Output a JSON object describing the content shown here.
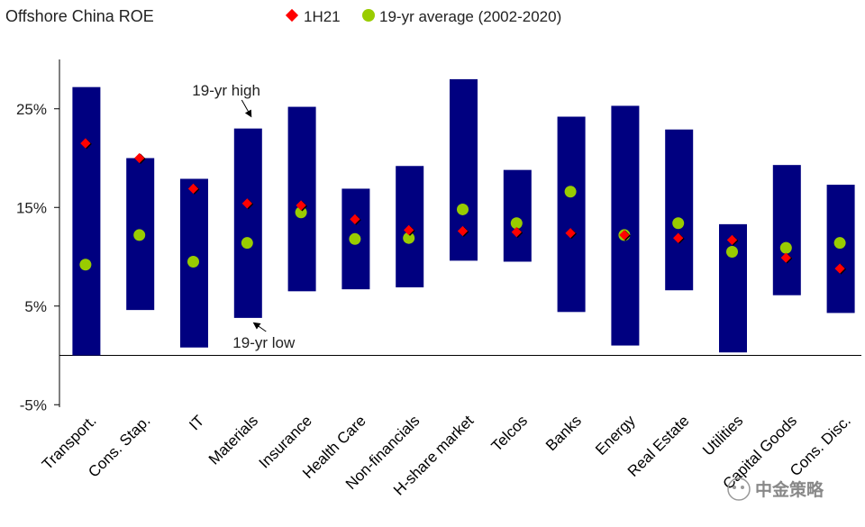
{
  "chart_data": {
    "type": "range-bar-scatter",
    "title": "Offshore China ROE",
    "legend": {
      "placement": "top",
      "items": [
        {
          "name": "1H21",
          "marker": "diamond",
          "color": "#ff0000"
        },
        {
          "name": "19-yr average (2002-2020)",
          "marker": "circle",
          "color": "#99cc00"
        }
      ]
    },
    "ylim": [
      -5,
      30
    ],
    "yticks": [
      -5,
      5,
      15,
      25
    ],
    "ytick_labels": [
      "-5%",
      "5%",
      "15%",
      "25%"
    ],
    "bar_color": "#000080",
    "categories": [
      "Transport.",
      "Cons. Stap.",
      "IT",
      "Materials",
      "Insurance",
      "Health Care",
      "Non-financials",
      "H-share market",
      "Telcos",
      "Banks",
      "Energy",
      "Real Estate",
      "Utilities",
      "Capital Goods",
      "Cons. Disc."
    ],
    "series": [
      {
        "name": "19-yr low",
        "values": [
          0.0,
          4.6,
          0.8,
          3.8,
          6.5,
          6.7,
          6.9,
          9.6,
          9.5,
          4.4,
          1.0,
          6.6,
          0.3,
          6.1,
          4.3
        ]
      },
      {
        "name": "19-yr high",
        "values": [
          27.2,
          20.0,
          17.9,
          23.0,
          25.2,
          16.9,
          19.2,
          28.0,
          18.8,
          24.2,
          25.3,
          22.9,
          13.3,
          19.3,
          17.3
        ]
      },
      {
        "name": "1H21",
        "values": [
          21.5,
          20.0,
          16.9,
          15.4,
          15.2,
          13.8,
          12.7,
          12.6,
          12.5,
          12.4,
          12.2,
          11.9,
          11.7,
          9.9,
          8.8
        ]
      },
      {
        "name": "19-yr average (2002-2020)",
        "values": [
          9.2,
          12.2,
          9.5,
          11.4,
          14.5,
          11.8,
          11.9,
          14.8,
          13.4,
          16.6,
          12.2,
          13.4,
          10.5,
          10.9,
          11.4
        ]
      }
    ],
    "annotations": [
      {
        "text": "19-yr high",
        "category": "Materials",
        "target": "high"
      },
      {
        "text": "19-yr low",
        "category": "Materials",
        "target": "low"
      }
    ]
  },
  "watermark": "中金策略"
}
